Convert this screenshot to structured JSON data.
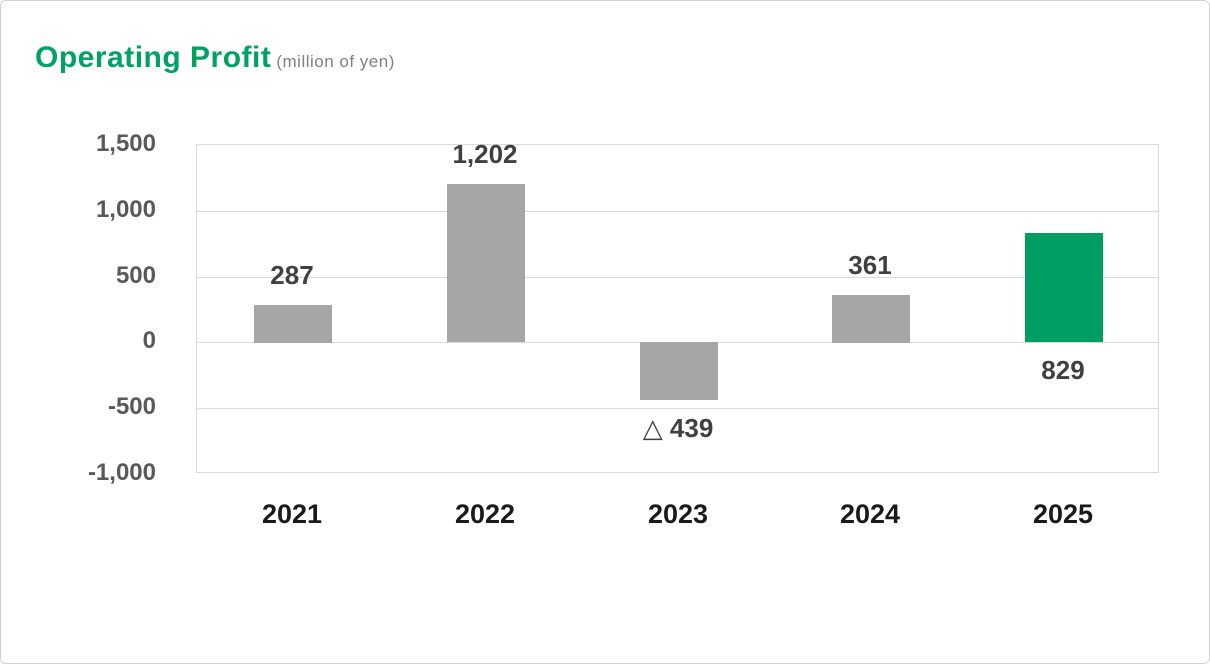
{
  "page": {
    "background": "#ffffff",
    "border_color": "#d2d2d2"
  },
  "header": {
    "title": "Operating Profit",
    "subtitle": "(million of yen)",
    "title_color": "#00A263",
    "subtitle_color": "#808080"
  },
  "chart_data": {
    "type": "bar",
    "title": "Operating Profit",
    "subtitle": "(million of yen)",
    "categories": [
      "2021",
      "2022",
      "2023",
      "2024",
      "2025"
    ],
    "values": [
      287,
      1202,
      -439,
      361,
      829
    ],
    "data_labels": [
      "287",
      "1,202",
      "△ 439",
      "361",
      "829"
    ],
    "data_label_positions": [
      "above",
      "above",
      "below",
      "above",
      "below"
    ],
    "bar_colors": [
      "#A6A6A6",
      "#A6A6A6",
      "#A6A6A6",
      "#A6A6A6",
      "#009E63"
    ],
    "default_bar_color": "#A6A6A6",
    "highlight_color": "#009E63",
    "negative_prefix_symbol": "△",
    "ylim": [
      -1000,
      1500
    ],
    "ytick_values": [
      1500,
      1000,
      500,
      0,
      -500,
      -1000
    ],
    "ytick_labels": [
      "1,500",
      "1,000",
      "500",
      "0",
      "-500",
      "-1,000"
    ],
    "grid": true,
    "gridline_color": "#d9d9d9",
    "data_label_color": "#404040",
    "ytick_color": "#595959",
    "xtick_color": "#1a1a1a",
    "legend": "none",
    "xlabel": "",
    "ylabel": ""
  }
}
